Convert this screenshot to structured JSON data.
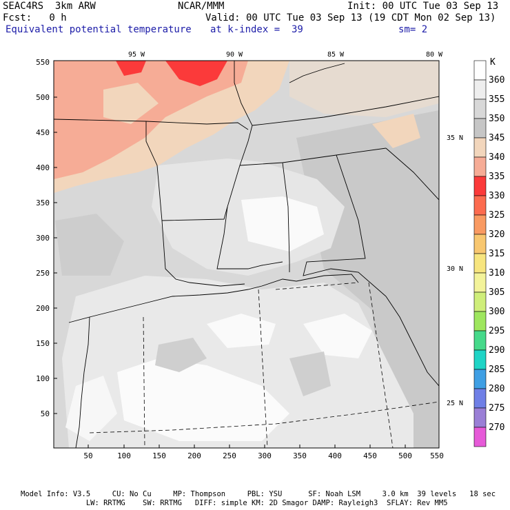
{
  "header": {
    "project": "SEAC4RS  3km ARW",
    "center": "NCAR/MMM",
    "init": "Init: 00 UTC Tue 03 Sep 13",
    "fcst": "Fcst:   0 h",
    "valid": "Valid: 00 UTC Tue 03 Sep 13 (19 CDT Mon 02 Sep 13)",
    "field": "Equivalent potential temperature",
    "level": "at k-index =  39",
    "smooth": "sm= 2"
  },
  "map": {
    "lon_labels": [
      "95 W",
      "90 W",
      "85 W",
      "80 W"
    ],
    "lat_labels": [
      "35 N",
      "30 N",
      "25 N"
    ],
    "x_ticks": [
      "50",
      "100",
      "150",
      "200",
      "250",
      "300",
      "350",
      "400",
      "450",
      "500",
      "550"
    ],
    "y_ticks": [
      "50",
      "100",
      "150",
      "200",
      "250",
      "300",
      "350",
      "400",
      "450",
      "500",
      "550"
    ]
  },
  "colorbar": {
    "unit": "K",
    "levels": [
      {
        "label": "360",
        "color": "#ffffff"
      },
      {
        "label": "355",
        "color": "#eeeeee"
      },
      {
        "label": "350",
        "color": "#d8d8d8"
      },
      {
        "label": "345",
        "color": "#c6c6c6"
      },
      {
        "label": "340",
        "color": "#f2d6bc"
      },
      {
        "label": "335",
        "color": "#f6ac96"
      },
      {
        "label": "330",
        "color": "#fb3a3a"
      },
      {
        "label": "325",
        "color": "#fc6b4f"
      },
      {
        "label": "320",
        "color": "#f99a62"
      },
      {
        "label": "315",
        "color": "#f8c770"
      },
      {
        "label": "310",
        "color": "#f7e57f"
      },
      {
        "label": "305",
        "color": "#f3f39a"
      },
      {
        "label": "300",
        "color": "#cfee7a"
      },
      {
        "label": "295",
        "color": "#9ee65e"
      },
      {
        "label": "290",
        "color": "#46d98a"
      },
      {
        "label": "285",
        "color": "#1fd4c6"
      },
      {
        "label": "280",
        "color": "#3f9fe4"
      },
      {
        "label": "275",
        "color": "#6f7fe6"
      },
      {
        "label": "270",
        "color": "#9a7fd6"
      },
      {
        "label": "",
        "color": "#e65ad8"
      }
    ]
  },
  "footer": {
    "line1": "Model Info: V3.5     CU: No Cu     MP: Thompson     PBL: YSU      SF: Noah LSM     3.0 km  39 levels   18 sec",
    "line2": "               LW: RRTMG    SW: RRTMG   DIFF: simple KM: 2D Smagor DAMP: Rayleigh3  SFLAY: Rev MM5"
  }
}
